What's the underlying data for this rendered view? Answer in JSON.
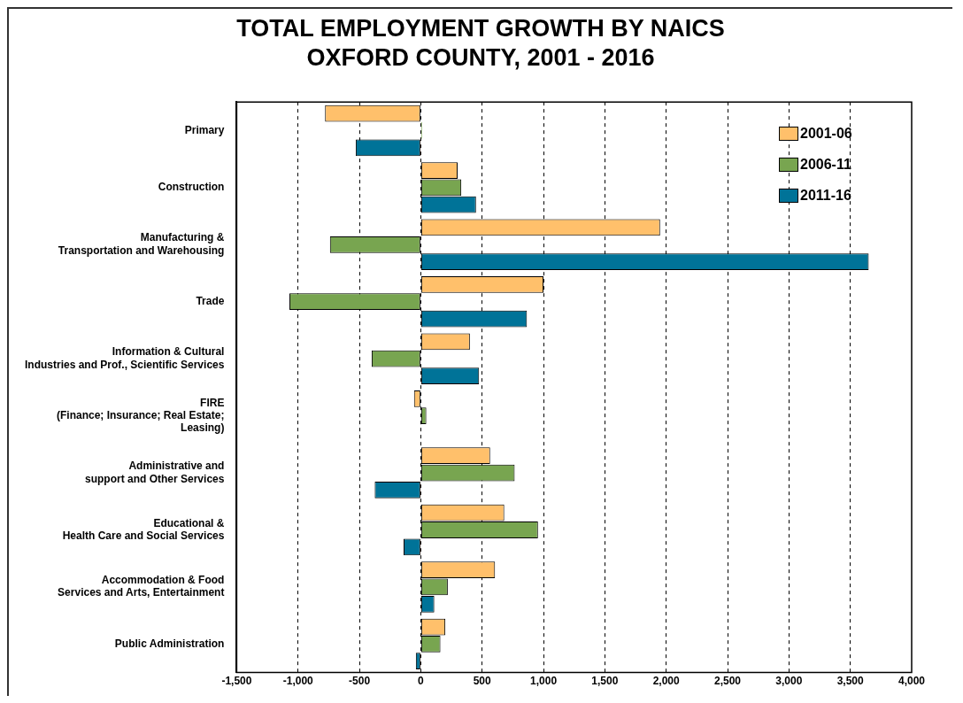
{
  "chart_data": {
    "type": "bar",
    "orientation": "horizontal",
    "title": "TOTAL EMPLOYMENT GROWTH BY NAICS\nOXFORD COUNTY, 2001 - 2016",
    "categories": [
      "Primary",
      "Construction",
      "Manufacturing &\nTransportation and Warehousing",
      "Trade",
      "Information & Cultural\nIndustries and Prof., Scientific Services",
      "FIRE\n(Finance; Insurance; Real Estate;\nLeasing)",
      "Administrative and\nsupport and Other Services",
      "Educational &\nHealth Care and Social Services",
      "Accommodation & Food\nServices and Arts, Entertainment",
      "Public Administration"
    ],
    "series": [
      {
        "name": "2001-06",
        "color": "#ffc06b",
        "values": [
          -780,
          300,
          1950,
          1000,
          400,
          -55,
          565,
          680,
          605,
          200
        ]
      },
      {
        "name": "2006-11",
        "color": "#78a550",
        "values": [
          10,
          330,
          -740,
          -1070,
          -400,
          45,
          765,
          955,
          220,
          160
        ]
      },
      {
        "name": "2011-16",
        "color": "#007398",
        "values": [
          -530,
          450,
          3650,
          865,
          475,
          0,
          -375,
          -140,
          110,
          -40
        ]
      }
    ],
    "xlim": [
      -1500,
      4000
    ],
    "xticks": [
      {
        "value": -1500,
        "label": "-1,500"
      },
      {
        "value": -1000,
        "label": "-1,000"
      },
      -500,
      0,
      500,
      {
        "value": 1000,
        "label": "1,000"
      },
      {
        "value": 1500,
        "label": "1,500"
      },
      {
        "value": 2000,
        "label": "2,000"
      },
      {
        "value": 2500,
        "label": "2,500"
      },
      {
        "value": 3000,
        "label": "3,000"
      },
      {
        "value": 3500,
        "label": "3,500"
      },
      {
        "value": 4000,
        "label": "4,000"
      }
    ],
    "grid": "x",
    "legend": "top right"
  }
}
